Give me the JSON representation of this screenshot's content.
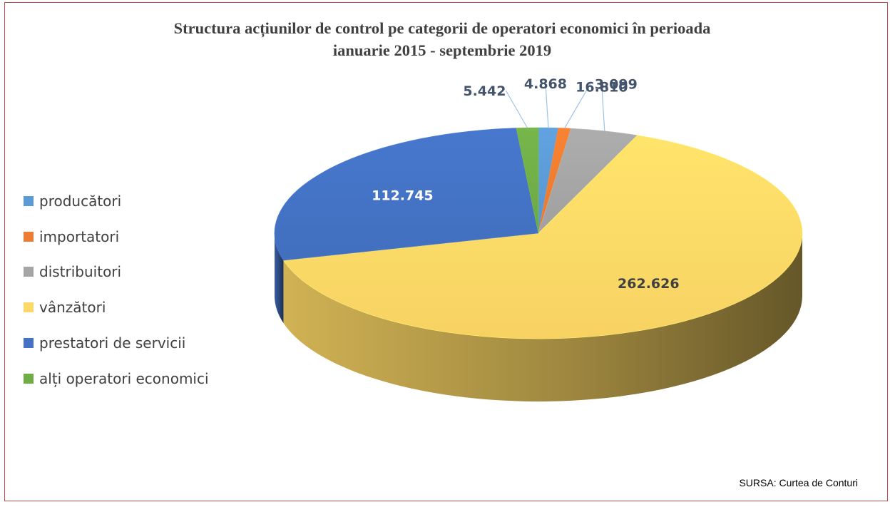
{
  "title_line1": "Structura acțiunilor de control pe categorii de operatori economici în perioada",
  "title_line2": "ianuarie 2015 - septembrie 2019",
  "source": "SURSA: Curtea de Conturi",
  "chart_data": {
    "type": "pie",
    "style": "3d",
    "legend_position": "left",
    "categories": [
      "producători",
      "importatori",
      "distribuitori",
      "vânzători",
      "prestatori de servicii",
      "alți operatori economici"
    ],
    "values": [
      4868,
      3099,
      16810,
      262626,
      112745,
      5442
    ],
    "value_labels": [
      "4.868",
      "3.099",
      "16.810",
      "262.626",
      "112.745",
      "5.442"
    ],
    "colors": [
      "#5b9bd5",
      "#ed7d31",
      "#a5a5a5",
      "#ffd966",
      "#4472c4",
      "#70ad47"
    ]
  }
}
